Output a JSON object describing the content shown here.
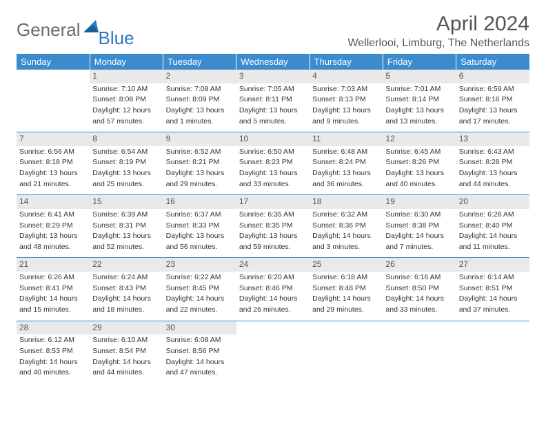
{
  "brand": {
    "part1": "General",
    "part2": "Blue"
  },
  "title": "April 2024",
  "location": "Wellerlooi, Limburg, The Netherlands",
  "colors": {
    "header_bg": "#3b8bcd",
    "header_text": "#ffffff",
    "daynum_bg": "#e9e9e9",
    "daynum_text": "#555555",
    "divider": "#3b8bcd",
    "body_text": "#333333",
    "logo_gray": "#6b6b6b",
    "logo_blue": "#2f78c3"
  },
  "day_headers": [
    "Sunday",
    "Monday",
    "Tuesday",
    "Wednesday",
    "Thursday",
    "Friday",
    "Saturday"
  ],
  "weeks": [
    [
      null,
      {
        "n": "1",
        "sr": "Sunrise: 7:10 AM",
        "ss": "Sunset: 8:08 PM",
        "d1": "Daylight: 12 hours",
        "d2": "and 57 minutes."
      },
      {
        "n": "2",
        "sr": "Sunrise: 7:08 AM",
        "ss": "Sunset: 8:09 PM",
        "d1": "Daylight: 13 hours",
        "d2": "and 1 minutes."
      },
      {
        "n": "3",
        "sr": "Sunrise: 7:05 AM",
        "ss": "Sunset: 8:11 PM",
        "d1": "Daylight: 13 hours",
        "d2": "and 5 minutes."
      },
      {
        "n": "4",
        "sr": "Sunrise: 7:03 AM",
        "ss": "Sunset: 8:13 PM",
        "d1": "Daylight: 13 hours",
        "d2": "and 9 minutes."
      },
      {
        "n": "5",
        "sr": "Sunrise: 7:01 AM",
        "ss": "Sunset: 8:14 PM",
        "d1": "Daylight: 13 hours",
        "d2": "and 13 minutes."
      },
      {
        "n": "6",
        "sr": "Sunrise: 6:59 AM",
        "ss": "Sunset: 8:16 PM",
        "d1": "Daylight: 13 hours",
        "d2": "and 17 minutes."
      }
    ],
    [
      {
        "n": "7",
        "sr": "Sunrise: 6:56 AM",
        "ss": "Sunset: 8:18 PM",
        "d1": "Daylight: 13 hours",
        "d2": "and 21 minutes."
      },
      {
        "n": "8",
        "sr": "Sunrise: 6:54 AM",
        "ss": "Sunset: 8:19 PM",
        "d1": "Daylight: 13 hours",
        "d2": "and 25 minutes."
      },
      {
        "n": "9",
        "sr": "Sunrise: 6:52 AM",
        "ss": "Sunset: 8:21 PM",
        "d1": "Daylight: 13 hours",
        "d2": "and 29 minutes."
      },
      {
        "n": "10",
        "sr": "Sunrise: 6:50 AM",
        "ss": "Sunset: 8:23 PM",
        "d1": "Daylight: 13 hours",
        "d2": "and 33 minutes."
      },
      {
        "n": "11",
        "sr": "Sunrise: 6:48 AM",
        "ss": "Sunset: 8:24 PM",
        "d1": "Daylight: 13 hours",
        "d2": "and 36 minutes."
      },
      {
        "n": "12",
        "sr": "Sunrise: 6:45 AM",
        "ss": "Sunset: 8:26 PM",
        "d1": "Daylight: 13 hours",
        "d2": "and 40 minutes."
      },
      {
        "n": "13",
        "sr": "Sunrise: 6:43 AM",
        "ss": "Sunset: 8:28 PM",
        "d1": "Daylight: 13 hours",
        "d2": "and 44 minutes."
      }
    ],
    [
      {
        "n": "14",
        "sr": "Sunrise: 6:41 AM",
        "ss": "Sunset: 8:29 PM",
        "d1": "Daylight: 13 hours",
        "d2": "and 48 minutes."
      },
      {
        "n": "15",
        "sr": "Sunrise: 6:39 AM",
        "ss": "Sunset: 8:31 PM",
        "d1": "Daylight: 13 hours",
        "d2": "and 52 minutes."
      },
      {
        "n": "16",
        "sr": "Sunrise: 6:37 AM",
        "ss": "Sunset: 8:33 PM",
        "d1": "Daylight: 13 hours",
        "d2": "and 56 minutes."
      },
      {
        "n": "17",
        "sr": "Sunrise: 6:35 AM",
        "ss": "Sunset: 8:35 PM",
        "d1": "Daylight: 13 hours",
        "d2": "and 59 minutes."
      },
      {
        "n": "18",
        "sr": "Sunrise: 6:32 AM",
        "ss": "Sunset: 8:36 PM",
        "d1": "Daylight: 14 hours",
        "d2": "and 3 minutes."
      },
      {
        "n": "19",
        "sr": "Sunrise: 6:30 AM",
        "ss": "Sunset: 8:38 PM",
        "d1": "Daylight: 14 hours",
        "d2": "and 7 minutes."
      },
      {
        "n": "20",
        "sr": "Sunrise: 6:28 AM",
        "ss": "Sunset: 8:40 PM",
        "d1": "Daylight: 14 hours",
        "d2": "and 11 minutes."
      }
    ],
    [
      {
        "n": "21",
        "sr": "Sunrise: 6:26 AM",
        "ss": "Sunset: 8:41 PM",
        "d1": "Daylight: 14 hours",
        "d2": "and 15 minutes."
      },
      {
        "n": "22",
        "sr": "Sunrise: 6:24 AM",
        "ss": "Sunset: 8:43 PM",
        "d1": "Daylight: 14 hours",
        "d2": "and 18 minutes."
      },
      {
        "n": "23",
        "sr": "Sunrise: 6:22 AM",
        "ss": "Sunset: 8:45 PM",
        "d1": "Daylight: 14 hours",
        "d2": "and 22 minutes."
      },
      {
        "n": "24",
        "sr": "Sunrise: 6:20 AM",
        "ss": "Sunset: 8:46 PM",
        "d1": "Daylight: 14 hours",
        "d2": "and 26 minutes."
      },
      {
        "n": "25",
        "sr": "Sunrise: 6:18 AM",
        "ss": "Sunset: 8:48 PM",
        "d1": "Daylight: 14 hours",
        "d2": "and 29 minutes."
      },
      {
        "n": "26",
        "sr": "Sunrise: 6:16 AM",
        "ss": "Sunset: 8:50 PM",
        "d1": "Daylight: 14 hours",
        "d2": "and 33 minutes."
      },
      {
        "n": "27",
        "sr": "Sunrise: 6:14 AM",
        "ss": "Sunset: 8:51 PM",
        "d1": "Daylight: 14 hours",
        "d2": "and 37 minutes."
      }
    ],
    [
      {
        "n": "28",
        "sr": "Sunrise: 6:12 AM",
        "ss": "Sunset: 8:53 PM",
        "d1": "Daylight: 14 hours",
        "d2": "and 40 minutes."
      },
      {
        "n": "29",
        "sr": "Sunrise: 6:10 AM",
        "ss": "Sunset: 8:54 PM",
        "d1": "Daylight: 14 hours",
        "d2": "and 44 minutes."
      },
      {
        "n": "30",
        "sr": "Sunrise: 6:08 AM",
        "ss": "Sunset: 8:56 PM",
        "d1": "Daylight: 14 hours",
        "d2": "and 47 minutes."
      },
      null,
      null,
      null,
      null
    ]
  ]
}
